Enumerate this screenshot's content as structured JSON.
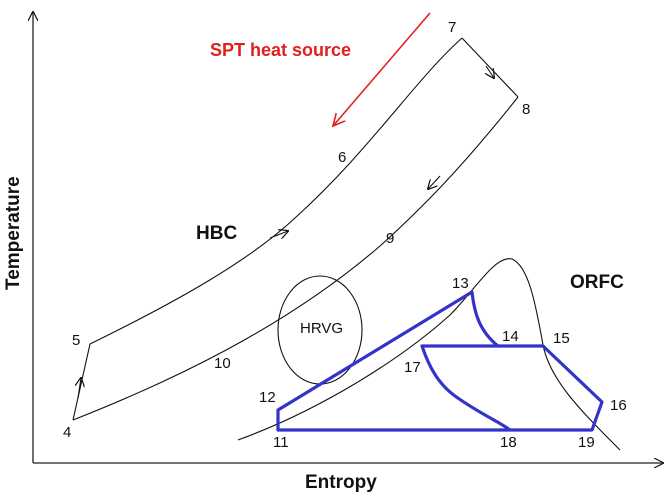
{
  "diagram": {
    "xlabel": "Entropy",
    "ylabel": "Temperature",
    "heat_source_label": "SPT heat source",
    "hbc_label": "HBC",
    "orfc_label": "ORFC",
    "hrvg_label": "HRVG",
    "colors": {
      "heat_source": "#e02020",
      "orfc_cycle": "#3333cc",
      "lines": "#111111"
    },
    "points": {
      "p4": "4",
      "p5": "5",
      "p6": "6",
      "p7": "7",
      "p8": "8",
      "p9": "9",
      "p10": "10",
      "p11": "11",
      "p12": "12",
      "p13": "13",
      "p14": "14",
      "p15": "15",
      "p16": "16",
      "p17": "17",
      "p18": "18",
      "p19": "19"
    }
  }
}
